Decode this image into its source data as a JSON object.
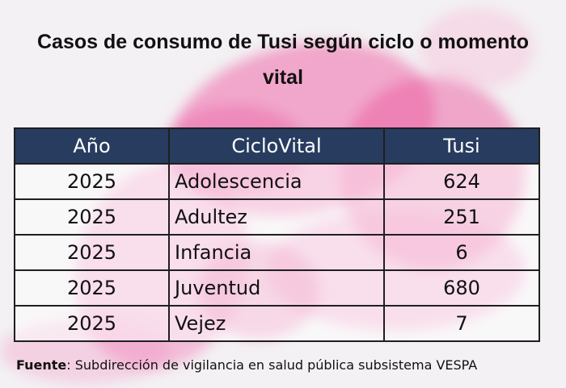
{
  "chart_data": {
    "type": "table",
    "title": "Casos de consumo de Tusi según ciclo o momento vital",
    "columns": [
      "Año",
      "CicloVital",
      "Tusi"
    ],
    "rows": [
      {
        "year": "2025",
        "cycle": "Adolescencia",
        "value": 624
      },
      {
        "year": "2025",
        "cycle": "Adultez",
        "value": 251
      },
      {
        "year": "2025",
        "cycle": "Infancia",
        "value": 6
      },
      {
        "year": "2025",
        "cycle": "Juventud",
        "value": 680
      },
      {
        "year": "2025",
        "cycle": "Vejez",
        "value": 7
      }
    ]
  },
  "source": {
    "label": "Fuente",
    "text": ": Subdirección de vigilancia en salud pública subsistema VESPA"
  },
  "colors": {
    "header_bg": "#273c5f",
    "header_text": "#ffffff",
    "background_accent": "#ee69aa"
  }
}
